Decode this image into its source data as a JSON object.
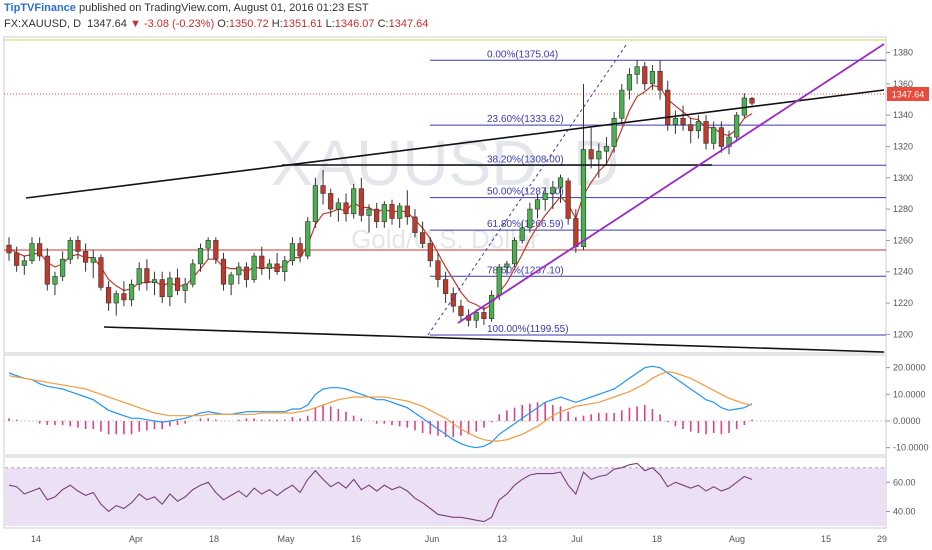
{
  "header": {
    "publisher": "TipTVFinance",
    "published_text": "published on TradingView.com, August 01, 2016 01:23 EST"
  },
  "ohlc": {
    "symbol": "FX:XAUUSD, D",
    "last": "1347.64",
    "change": "-3.08 (-0.23%)",
    "open_label": "O:",
    "open": "1350.72",
    "high_label": "H:",
    "high": "1351.61",
    "low_label": "L:",
    "low": "1346.07",
    "close_label": "C:",
    "close": "1347.64"
  },
  "watermark": {
    "symbol": "XAUUSD, D",
    "desc": "Gold/U.S. Dollar"
  },
  "colors": {
    "up": "#4caf50",
    "down": "#c0392b",
    "fib": "#3a3ab0",
    "trend_purple": "#9b27c8",
    "macd": "#2196f3",
    "signal": "#f39c3f",
    "hist": "#e0408a",
    "rsi": "#7b3f7b",
    "rsi_band": "#ece0f5",
    "price_tag": "#e74c3c"
  },
  "chart_data": [
    {
      "type": "candlestick",
      "title": "FX:XAUUSD, D",
      "y_axis_ticks": [
        1200,
        1220,
        1240,
        1260,
        1280,
        1300,
        1320,
        1340,
        1360,
        1380
      ],
      "ylim": [
        1190,
        1388
      ],
      "x_ticks": [
        "14",
        "Apr",
        "18",
        "May",
        "16",
        "Jun",
        "13",
        "Jul",
        "18",
        "Aug",
        "15",
        "29"
      ],
      "last_price_label": "1347.64",
      "candles": [
        [
          1257,
          1262,
          1247,
          1252
        ],
        [
          1252,
          1256,
          1240,
          1244
        ],
        [
          1244,
          1250,
          1238,
          1247
        ],
        [
          1247,
          1262,
          1245,
          1258
        ],
        [
          1258,
          1262,
          1247,
          1250
        ],
        [
          1250,
          1255,
          1228,
          1232
        ],
        [
          1232,
          1240,
          1225,
          1237
        ],
        [
          1237,
          1253,
          1234,
          1248
        ],
        [
          1248,
          1262,
          1245,
          1260
        ],
        [
          1260,
          1263,
          1248,
          1253
        ],
        [
          1253,
          1258,
          1240,
          1246
        ],
        [
          1246,
          1254,
          1236,
          1249
        ],
        [
          1249,
          1251,
          1228,
          1230
        ],
        [
          1230,
          1234,
          1215,
          1220
        ],
        [
          1220,
          1228,
          1212,
          1226
        ],
        [
          1226,
          1234,
          1218,
          1222
        ],
        [
          1222,
          1235,
          1218,
          1232
        ],
        [
          1232,
          1246,
          1228,
          1242
        ],
        [
          1242,
          1248,
          1228,
          1233
        ],
        [
          1233,
          1240,
          1225,
          1235
        ],
        [
          1235,
          1240,
          1220,
          1224
        ],
        [
          1224,
          1240,
          1218,
          1236
        ],
        [
          1236,
          1242,
          1225,
          1228
        ],
        [
          1228,
          1236,
          1220,
          1232
        ],
        [
          1232,
          1248,
          1230,
          1245
        ],
        [
          1245,
          1258,
          1240,
          1255
        ],
        [
          1255,
          1262,
          1248,
          1260
        ],
        [
          1260,
          1262,
          1245,
          1248
        ],
        [
          1248,
          1252,
          1228,
          1232
        ],
        [
          1232,
          1240,
          1225,
          1238
        ],
        [
          1238,
          1246,
          1232,
          1243
        ],
        [
          1243,
          1246,
          1230,
          1235
        ],
        [
          1235,
          1252,
          1233,
          1250
        ],
        [
          1250,
          1256,
          1238,
          1242
        ],
        [
          1242,
          1248,
          1235,
          1245
        ],
        [
          1245,
          1252,
          1238,
          1240
        ],
        [
          1240,
          1250,
          1234,
          1247
        ],
        [
          1247,
          1262,
          1244,
          1258
        ],
        [
          1258,
          1262,
          1246,
          1250
        ],
        [
          1250,
          1275,
          1248,
          1272
        ],
        [
          1272,
          1300,
          1268,
          1295
        ],
        [
          1295,
          1305,
          1283,
          1290
        ],
        [
          1290,
          1293,
          1275,
          1280
        ],
        [
          1280,
          1287,
          1272,
          1284
        ],
        [
          1284,
          1290,
          1272,
          1277
        ],
        [
          1277,
          1296,
          1274,
          1293
        ],
        [
          1293,
          1300,
          1272,
          1276
        ],
        [
          1276,
          1283,
          1265,
          1280
        ],
        [
          1280,
          1284,
          1268,
          1272
        ],
        [
          1272,
          1285,
          1268,
          1283
        ],
        [
          1283,
          1286,
          1270,
          1274
        ],
        [
          1274,
          1284,
          1268,
          1282
        ],
        [
          1282,
          1292,
          1270,
          1275
        ],
        [
          1275,
          1280,
          1262,
          1265
        ],
        [
          1265,
          1272,
          1255,
          1258
        ],
        [
          1258,
          1262,
          1243,
          1247
        ],
        [
          1247,
          1252,
          1230,
          1235
        ],
        [
          1235,
          1240,
          1220,
          1226
        ],
        [
          1226,
          1230,
          1214,
          1218
        ],
        [
          1218,
          1222,
          1208,
          1212
        ],
        [
          1212,
          1216,
          1205,
          1209
        ],
        [
          1209,
          1216,
          1204,
          1214
        ],
        [
          1214,
          1218,
          1206,
          1210
        ],
        [
          1210,
          1228,
          1208,
          1225
        ],
        [
          1225,
          1245,
          1222,
          1243
        ],
        [
          1243,
          1247,
          1238,
          1245
        ],
        [
          1245,
          1262,
          1243,
          1260
        ],
        [
          1260,
          1272,
          1258,
          1268
        ],
        [
          1268,
          1284,
          1265,
          1280
        ],
        [
          1280,
          1290,
          1274,
          1286
        ],
        [
          1286,
          1294,
          1279,
          1290
        ],
        [
          1290,
          1298,
          1280,
          1294
        ],
        [
          1294,
          1302,
          1284,
          1300
        ],
        [
          1298,
          1300,
          1270,
          1274
        ],
        [
          1274,
          1280,
          1252,
          1256
        ],
        [
          1256,
          1360,
          1254,
          1318
        ],
        [
          1318,
          1332,
          1306,
          1312
        ],
        [
          1312,
          1322,
          1300,
          1317
        ],
        [
          1317,
          1326,
          1308,
          1320
        ],
        [
          1320,
          1342,
          1316,
          1338
        ],
        [
          1338,
          1360,
          1334,
          1356
        ],
        [
          1356,
          1370,
          1350,
          1366
        ],
        [
          1366,
          1375,
          1360,
          1371
        ],
        [
          1371,
          1374,
          1356,
          1360
        ],
        [
          1360,
          1372,
          1356,
          1368
        ],
        [
          1368,
          1375,
          1350,
          1356
        ],
        [
          1356,
          1362,
          1330,
          1334
        ],
        [
          1334,
          1343,
          1328,
          1338
        ],
        [
          1338,
          1346,
          1330,
          1334
        ],
        [
          1334,
          1338,
          1322,
          1330
        ],
        [
          1330,
          1340,
          1325,
          1336
        ],
        [
          1336,
          1340,
          1318,
          1322
        ],
        [
          1322,
          1336,
          1318,
          1332
        ],
        [
          1332,
          1336,
          1316,
          1320
        ],
        [
          1320,
          1330,
          1315,
          1326
        ],
        [
          1326,
          1342,
          1323,
          1340
        ],
        [
          1340,
          1354,
          1338,
          1351
        ],
        [
          1350.72,
          1351.61,
          1346.07,
          1347.64
        ]
      ],
      "ema": [
        1255,
        1252,
        1250,
        1251,
        1252,
        1246,
        1243,
        1245,
        1250,
        1251,
        1249,
        1249,
        1243,
        1235,
        1231,
        1228,
        1229,
        1233,
        1233,
        1234,
        1231,
        1233,
        1231,
        1231,
        1236,
        1242,
        1248,
        1248,
        1243,
        1242,
        1242,
        1240,
        1243,
        1242,
        1243,
        1242,
        1244,
        1249,
        1249,
        1257,
        1270,
        1277,
        1278,
        1280,
        1279,
        1284,
        1281,
        1281,
        1278,
        1280,
        1278,
        1279,
        1278,
        1273,
        1268,
        1261,
        1252,
        1243,
        1235,
        1227,
        1221,
        1219,
        1216,
        1219,
        1227,
        1233,
        1242,
        1251,
        1261,
        1269,
        1276,
        1282,
        1288,
        1283,
        1274,
        1289,
        1297,
        1304,
        1309,
        1319,
        1331,
        1343,
        1352,
        1355,
        1359,
        1358,
        1350,
        1346,
        1342,
        1338,
        1337,
        1332,
        1332,
        1328,
        1327,
        1331,
        1338,
        1341
      ]
    },
    {
      "type": "fibonacci",
      "levels": [
        {
          "label": "0.00%(1375.04)",
          "value": 1375.04
        },
        {
          "label": "23.60%(1333.62)",
          "value": 1333.62
        },
        {
          "label": "38.20%(1308.00)",
          "value": 1308.0
        },
        {
          "label": "50.00%(1287.30)",
          "value": 1287.3
        },
        {
          "label": "61.80%(1266.59)",
          "value": 1266.59
        },
        {
          "label": "78.60%(1237.10)",
          "value": 1237.1
        },
        {
          "label": "100.00%(1199.55)",
          "value": 1199.55
        }
      ]
    },
    {
      "type": "line",
      "title": "MACD",
      "y_axis_ticks": [
        -10,
        0,
        10,
        20
      ],
      "ylim": [
        -12,
        24
      ],
      "series": [
        {
          "values": [
            18,
            17,
            16,
            15.5,
            14,
            13,
            12.5,
            12,
            11,
            10,
            9,
            8,
            6,
            4,
            3,
            2,
            1,
            1,
            0.5,
            0,
            -0.5,
            0,
            0.5,
            1,
            2,
            3,
            3.5,
            3,
            2.5,
            2.5,
            3,
            3.5,
            3.5,
            3.5,
            3.5,
            3.5,
            3.5,
            4.5,
            4.5,
            6,
            10,
            12,
            12.5,
            12.5,
            12,
            11,
            10,
            9,
            8,
            8,
            7,
            6,
            5,
            3,
            1,
            -1,
            -3,
            -5,
            -7,
            -8.5,
            -9.5,
            -10,
            -9.5,
            -8,
            -5,
            -3,
            -1,
            1,
            3,
            5,
            7,
            8,
            9,
            8,
            7,
            8,
            9,
            10,
            11,
            12,
            14,
            16,
            18,
            20,
            20.5,
            20,
            18,
            16,
            14,
            12,
            10,
            8,
            7,
            5,
            4,
            4.5,
            5,
            6.5
          ]
        },
        {
          "values": [
            17,
            16.5,
            16,
            15.5,
            15,
            14.5,
            14,
            13.5,
            13,
            12.5,
            12,
            11,
            10,
            9,
            8,
            7,
            6,
            5,
            4,
            3,
            2.5,
            2,
            2,
            2,
            2,
            2,
            2.5,
            2.5,
            2.5,
            2.5,
            2.5,
            2.5,
            2.5,
            3,
            3,
            3,
            3,
            3,
            3.5,
            4,
            5,
            6,
            7,
            8,
            8.5,
            9,
            9,
            9,
            9,
            9,
            8.5,
            8,
            7.5,
            6.5,
            5.5,
            4,
            2.5,
            1,
            -1,
            -3,
            -4.5,
            -6,
            -7,
            -7.5,
            -7.5,
            -7,
            -6,
            -5,
            -3.5,
            -2,
            0,
            2,
            3.5,
            4.5,
            5.5,
            6,
            6.5,
            7,
            8,
            9,
            10,
            11,
            12.5,
            14,
            16,
            17.5,
            18.5,
            18,
            17,
            16,
            14.5,
            13,
            11.5,
            10,
            8.5,
            7.5,
            6.5,
            6
          ]
        },
        {
          "values": [
            1,
            0.5,
            0,
            0,
            -1,
            -1.5,
            -1.5,
            -1.5,
            -2,
            -2.5,
            -3,
            -3,
            -4,
            -5,
            -5,
            -5,
            -5,
            -4,
            -3.5,
            -3,
            -3,
            -2,
            -1.5,
            -1,
            0,
            1,
            1,
            0.5,
            0,
            0,
            0.5,
            1,
            1,
            0.5,
            0.5,
            0.5,
            0.5,
            1.5,
            1,
            2,
            5,
            6,
            5.5,
            4.5,
            3.5,
            2,
            1,
            0,
            -1,
            -1,
            -1.5,
            -2,
            -2.5,
            -3.5,
            -4.5,
            -5,
            -5.5,
            -6,
            -6,
            -5.5,
            -5,
            -4,
            -2.5,
            -0.5,
            2.5,
            4,
            5,
            6,
            6.5,
            7,
            7,
            6,
            5.5,
            3.5,
            1.5,
            2,
            2.5,
            3,
            3,
            3,
            4,
            5,
            5.5,
            6,
            4.5,
            2.5,
            -0.5,
            -2,
            -3,
            -4,
            -4.5,
            -5,
            -4.5,
            -5,
            -4.5,
            -3,
            -1.5,
            0.5
          ]
        }
      ]
    },
    {
      "type": "line",
      "title": "RSI",
      "y_axis_ticks": [
        40,
        60
      ],
      "ylim": [
        30,
        76
      ],
      "band": [
        30,
        70
      ],
      "series": [
        {
          "values": [
            58,
            57,
            52,
            54,
            56,
            48,
            50,
            55,
            58,
            54,
            51,
            53,
            45,
            40,
            44,
            42,
            46,
            52,
            48,
            50,
            45,
            52,
            47,
            50,
            55,
            58,
            60,
            53,
            48,
            51,
            54,
            50,
            56,
            52,
            55,
            51,
            55,
            58,
            53,
            62,
            68,
            62,
            57,
            60,
            56,
            62,
            55,
            58,
            54,
            58,
            55,
            57,
            54,
            49,
            46,
            42,
            38,
            37,
            36,
            36,
            35,
            34,
            33,
            36,
            48,
            52,
            58,
            62,
            65,
            66,
            66,
            66,
            67,
            58,
            52,
            67,
            62,
            64,
            65,
            69,
            70,
            72,
            73,
            68,
            70,
            65,
            57,
            60,
            58,
            56,
            58,
            54,
            57,
            54,
            56,
            60,
            64,
            62
          ]
        }
      ]
    }
  ]
}
